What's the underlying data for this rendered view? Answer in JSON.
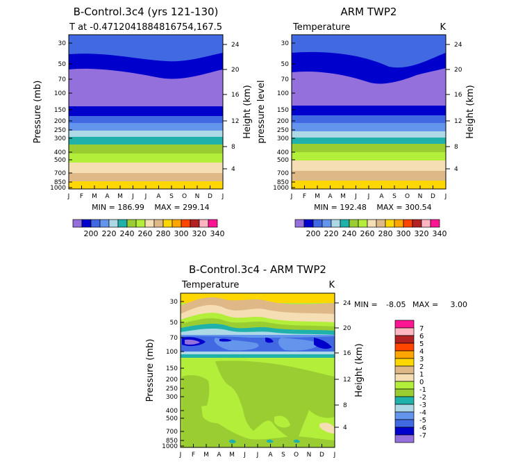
{
  "palette": {
    "abs_colors": [
      "#9370db",
      "#0000cd",
      "#4169e1",
      "#6495ed",
      "#add8e6",
      "#20b2aa",
      "#9acd32",
      "#b3ee3a",
      "#f5deb3",
      "#deb887",
      "#ffd700",
      "#ffa500",
      "#ff4500",
      "#b22222",
      "#ffb6c1",
      "#ff1493"
    ],
    "abs_labels": [
      "200",
      "220",
      "240",
      "260",
      "280",
      "300",
      "320",
      "340"
    ],
    "diff_colors": [
      "#9370db",
      "#0000cd",
      "#4169e1",
      "#6495ed",
      "#add8e6",
      "#20b2aa",
      "#9acd32",
      "#b3ee3a",
      "#f5deb3",
      "#deb887",
      "#ffd700",
      "#ffa500",
      "#ff4500",
      "#b22222",
      "#ffb6c1",
      "#ff1493"
    ],
    "diff_labels": [
      "7",
      "6",
      "5",
      "4",
      "3",
      "2",
      "1",
      "0",
      "-1",
      "-2",
      "-3",
      "-4",
      "-5",
      "-6",
      "-7"
    ]
  },
  "chart_data": [
    {
      "type": "heatmap",
      "title": "B-Control.3c4 (yrs 121-130)",
      "subtitle": "T at -0.4712041884816754,167.5",
      "xlabel": "",
      "ylabel": "Pressure (mb)",
      "y2label": "Height (km)",
      "months": [
        "J",
        "F",
        "M",
        "A",
        "M",
        "J",
        "J",
        "A",
        "S",
        "O",
        "N",
        "D",
        "J"
      ],
      "pressure_ticks": [
        "30",
        "50",
        "70",
        "100",
        "150",
        "200",
        "250",
        "300",
        "400",
        "500",
        "700",
        "850",
        "1000"
      ],
      "height_ticks": [
        "24",
        "20",
        "16",
        "12",
        "8",
        "4"
      ],
      "min_label": "MIN = 186.99",
      "max_label": "MAX = 299.14",
      "ylim_mb": [
        1000,
        20
      ]
    },
    {
      "type": "heatmap",
      "title": "ARM TWP2",
      "subtitle": "Temperature",
      "units": "K",
      "ylabel": "pressure level",
      "y2label": "Height (km)",
      "months": [
        "J",
        "F",
        "M",
        "A",
        "M",
        "J",
        "J",
        "A",
        "S",
        "O",
        "N",
        "D",
        "J"
      ],
      "pressure_ticks": [
        "30",
        "50",
        "70",
        "100",
        "150",
        "200",
        "250",
        "300",
        "400",
        "500",
        "700",
        "850",
        "1000"
      ],
      "height_ticks": [
        "24",
        "20",
        "16",
        "12",
        "8",
        "4"
      ],
      "min_label": "MIN = 192.48",
      "max_label": "MAX = 300.54",
      "ylim_mb": [
        1000,
        20
      ]
    },
    {
      "type": "heatmap",
      "title": "B-Control.3c4 - ARM TWP2",
      "subtitle": "Temperature",
      "units": "K",
      "ylabel": "Pressure (mb)",
      "y2label": "Height (km)",
      "months": [
        "J",
        "F",
        "M",
        "A",
        "M",
        "J",
        "J",
        "A",
        "S",
        "O",
        "N",
        "D",
        "J"
      ],
      "pressure_ticks": [
        "30",
        "50",
        "70",
        "100",
        "150",
        "200",
        "250",
        "300",
        "400",
        "500",
        "700",
        "850",
        "1000"
      ],
      "height_ticks": [
        "24",
        "20",
        "16",
        "12",
        "8",
        "4"
      ],
      "min_label": "MIN =",
      "min_value": "-8.05",
      "max_label": "MAX =",
      "max_value": "3.00",
      "ylim_mb": [
        1000,
        20
      ]
    }
  ]
}
